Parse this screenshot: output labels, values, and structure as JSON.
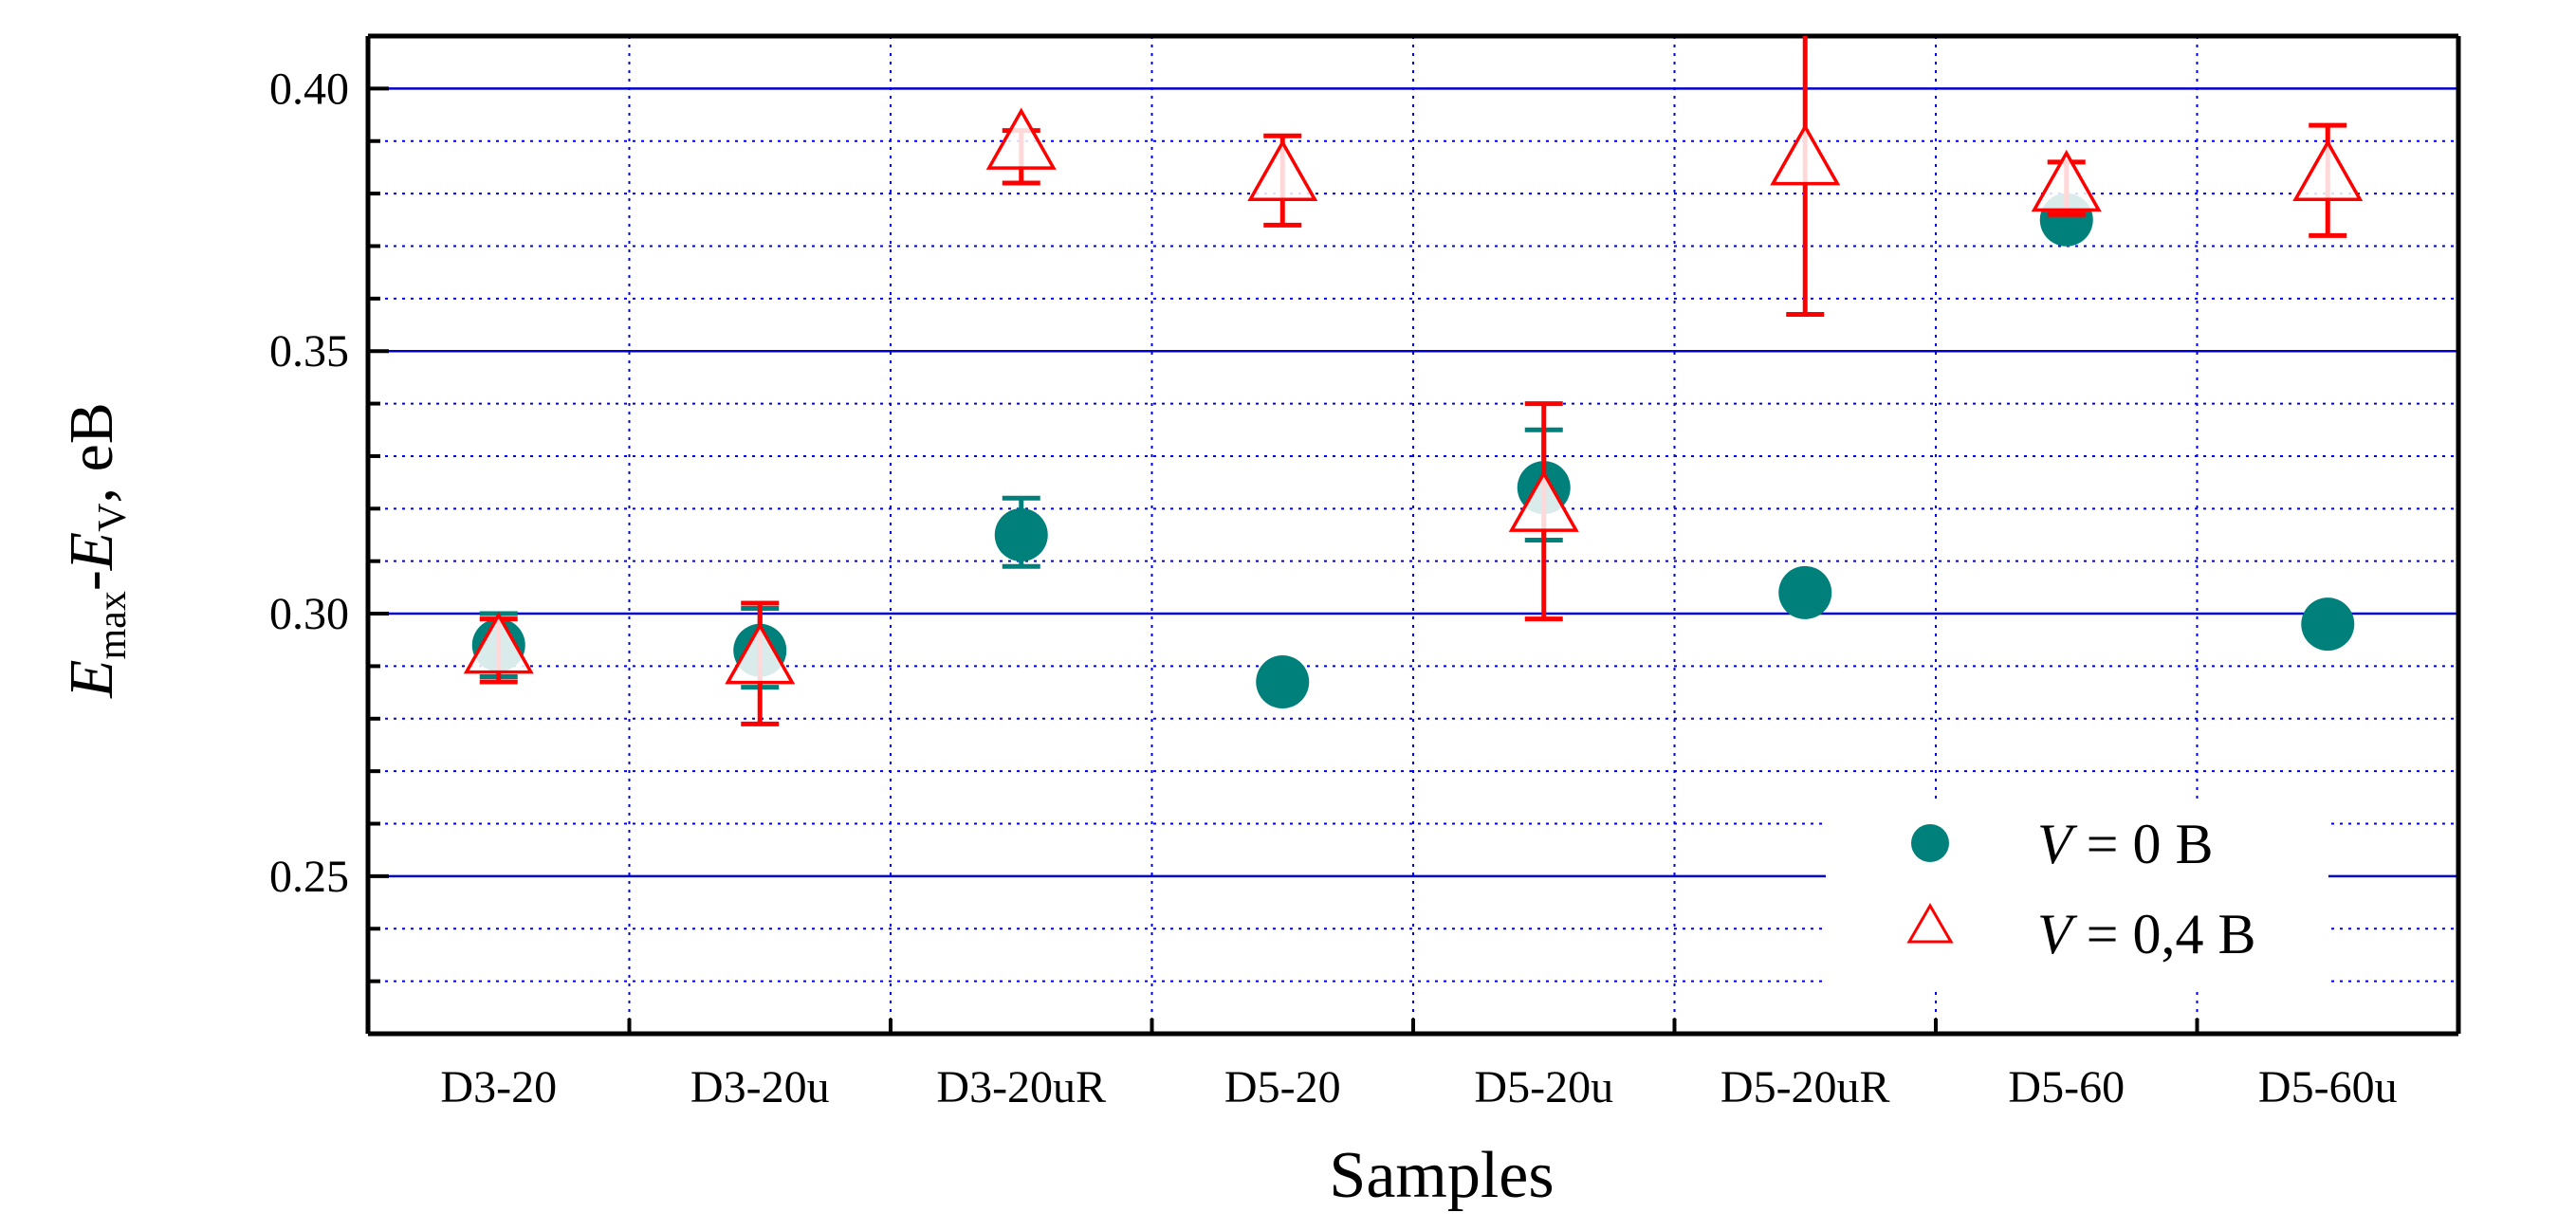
{
  "chart_data": {
    "type": "scatter",
    "xlabel": "Samples",
    "ylabel": {
      "e1": "E",
      "sub1": "max",
      "dash": "-",
      "e2": "E",
      "sub2": "V",
      "unit": ",  eB"
    },
    "ylim": [
      0.22,
      0.41
    ],
    "y_ticks": [
      {
        "value": 0.25,
        "label": "0.25"
      },
      {
        "value": 0.3,
        "label": "0.30"
      },
      {
        "value": 0.35,
        "label": "0.35"
      },
      {
        "value": 0.4,
        "label": "0.40"
      }
    ],
    "y_minor_step": 0.01,
    "grid": true,
    "categories": [
      "D3-20",
      "D3-20u",
      "D3-20uR",
      "D5-20",
      "D5-20u",
      "D5-20uR",
      "D5-60",
      "D5-60u"
    ],
    "series": [
      {
        "name": "V = 0 B",
        "legend_italic": "V",
        "legend_rest": " = 0 B",
        "marker": "circle",
        "color": "#00807a",
        "values": [
          0.294,
          0.293,
          0.315,
          0.287,
          0.324,
          0.304,
          0.375,
          0.298
        ],
        "err_low": [
          0.288,
          0.286,
          0.309,
          null,
          0.314,
          null,
          null,
          null
        ],
        "err_high": [
          0.3,
          0.301,
          0.322,
          null,
          0.335,
          null,
          null,
          null
        ]
      },
      {
        "name": "V = 0,4 B",
        "legend_italic": "V",
        "legend_rest": " = 0,4 B",
        "marker": "triangle",
        "color": "#ff0000",
        "values": [
          0.293,
          0.291,
          0.389,
          0.383,
          0.32,
          0.386,
          0.381,
          0.383
        ],
        "err_low": [
          0.287,
          0.279,
          0.382,
          0.374,
          0.299,
          0.357,
          0.376,
          0.372
        ],
        "err_high": [
          0.299,
          0.302,
          0.392,
          0.391,
          0.34,
          0.412,
          0.386,
          0.393
        ]
      }
    ],
    "legend_position": "bottom-right"
  }
}
